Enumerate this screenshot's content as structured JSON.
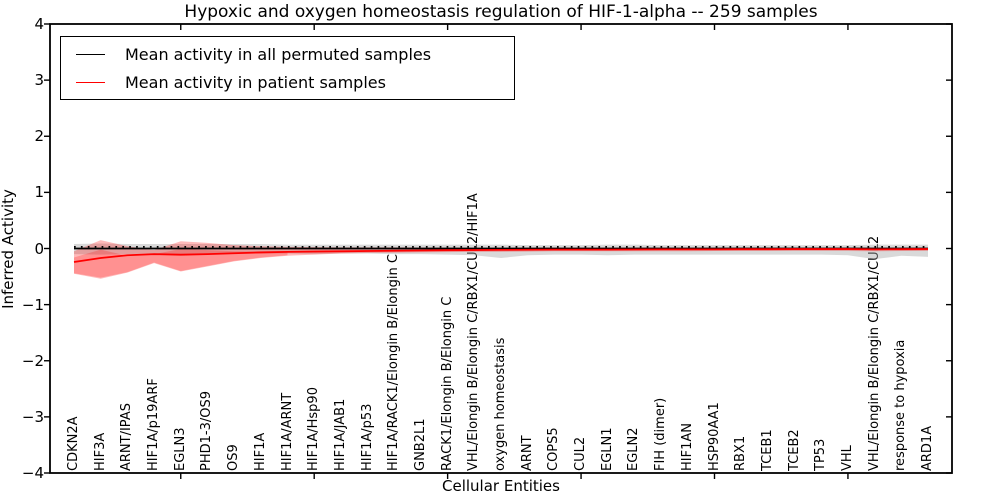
{
  "chart_data": {
    "type": "line",
    "title": "Hypoxic and oxygen homeostasis regulation of HIF-1-alpha -- 259 samples",
    "xlabel": "Cellular Entities",
    "ylabel": "Inferred Activity",
    "ylim": [
      -4,
      4
    ],
    "ytick_values": [
      4,
      3,
      2,
      1,
      0,
      -1,
      -2,
      -3,
      -4
    ],
    "ytick_labels": [
      "4",
      "3",
      "2",
      "1",
      "0",
      "−1",
      "−2",
      "−3",
      "−4"
    ],
    "xtick_marks_at_indices": [
      4,
      9,
      14,
      19,
      24,
      29
    ],
    "grid": false,
    "legend_position": "upper left",
    "categories": [
      "CDKN2A",
      "HIF3A",
      "ARNT/IPAS",
      "HIF1A/p19ARF",
      "EGLN3",
      "PHD1-3/OS9",
      "OS9",
      "HIF1A",
      "HIF1A/ARNT",
      "HIF1A/Hsp90",
      "HIF1A/JAB1",
      "HIF1A/p53",
      "HIF1A/RACK1/Elongin B/Elongin C",
      "GNB2L1",
      "RACK1/Elongin B/Elongin C",
      "VHL/Elongin B/Elongin C/RBX1/CUL2/HIF1A",
      "oxygen homeostasis",
      "ARNT",
      "COPS5",
      "CUL2",
      "EGLN1",
      "EGLN2",
      "FIH (dimer)",
      "HIF1AN",
      "HSP90AA1",
      "RBX1",
      "TCEB1",
      "TCEB2",
      "TP53",
      "VHL",
      "VHL/Elongin B/Elongin C/RBX1/CUL2",
      "response to hypoxia",
      "ARD1A"
    ],
    "series": [
      {
        "name": "Mean activity in all permuted samples",
        "color": "#000000",
        "style": "solid",
        "values": [
          0,
          0,
          0,
          0,
          0,
          0,
          0,
          0,
          0,
          0,
          0,
          0,
          0,
          0,
          0,
          0,
          0,
          0,
          0,
          0,
          0,
          0,
          0,
          0,
          0,
          0,
          0,
          0,
          0,
          0,
          0,
          0,
          0
        ]
      },
      {
        "name": "Mean activity in patient samples",
        "color": "#ff0000",
        "style": "solid",
        "values": [
          -0.24,
          -0.17,
          -0.12,
          -0.1,
          -0.11,
          -0.1,
          -0.085,
          -0.07,
          -0.06,
          -0.055,
          -0.05,
          -0.045,
          -0.04,
          -0.035,
          -0.03,
          -0.028,
          -0.025,
          -0.022,
          -0.02,
          -0.02,
          -0.02,
          -0.018,
          -0.016,
          -0.015,
          -0.015,
          -0.012,
          -0.012,
          -0.01,
          -0.01,
          -0.01,
          -0.015,
          -0.012,
          -0.01
        ]
      }
    ],
    "dotted_zero_line": {
      "color": "#000000",
      "value": 0.03,
      "style": "dotted"
    },
    "bands": [
      {
        "name": "permuted-samples-range",
        "color": "#aaaaaa",
        "opacity": 0.45,
        "start_index": 0,
        "upper": [
          0.08,
          0.09,
          0.08,
          0.08,
          0.08,
          0.08,
          0.08,
          0.08,
          0.07,
          0.07,
          0.07,
          0.07,
          0.07,
          0.07,
          0.07,
          0.07,
          0.07,
          0.06,
          0.06,
          0.06,
          0.07,
          0.07,
          0.06,
          0.06,
          0.06,
          0.06,
          0.06,
          0.06,
          0.06,
          0.06,
          0.07,
          0.07,
          0.07
        ],
        "lower": [
          -0.1,
          -0.11,
          -0.1,
          -0.09,
          -0.1,
          -0.09,
          -0.09,
          -0.09,
          -0.09,
          -0.1,
          -0.09,
          -0.09,
          -0.1,
          -0.1,
          -0.11,
          -0.12,
          -0.17,
          -0.12,
          -0.11,
          -0.11,
          -0.12,
          -0.11,
          -0.11,
          -0.11,
          -0.11,
          -0.11,
          -0.11,
          -0.11,
          -0.11,
          -0.12,
          -0.19,
          -0.13,
          -0.15
        ]
      },
      {
        "name": "patient-samples-range-outer",
        "color": "#ff0000",
        "opacity": 0.27,
        "start_index": 0,
        "upper": [
          -0.05,
          0.15,
          0.04,
          -0.03,
          0.13,
          0.1,
          0.06,
          0.04,
          0.03,
          0.025,
          0.02,
          0.02,
          0.02,
          0.018,
          0.016,
          0.015,
          0.015,
          0.015,
          0.015,
          0.015,
          0.015,
          0.015,
          0.015,
          0.015,
          0.015,
          0.015,
          0.015,
          0.015,
          0.015,
          0.015,
          0.018,
          0.015,
          0.015
        ],
        "lower": [
          -0.45,
          -0.54,
          -0.43,
          -0.26,
          -0.41,
          -0.32,
          -0.23,
          -0.17,
          -0.13,
          -0.11,
          -0.09,
          -0.08,
          -0.075,
          -0.07,
          -0.065,
          -0.06,
          -0.06,
          -0.055,
          -0.05,
          -0.05,
          -0.05,
          -0.05,
          -0.05,
          -0.05,
          -0.045,
          -0.045,
          -0.045,
          -0.045,
          -0.045,
          -0.045,
          -0.05,
          -0.045,
          -0.045
        ]
      },
      {
        "name": "patient-samples-range-inner",
        "color": "#ff0000",
        "opacity": 0.22,
        "start_index": 0,
        "upper": [
          -0.16,
          -0.02,
          -0.13,
          -0.1,
          -0.01,
          -0.03,
          -0.05,
          -0.05,
          -0.05
        ],
        "lower": [
          -0.44,
          -0.52,
          -0.42,
          -0.25,
          -0.4,
          -0.31,
          -0.22,
          -0.16,
          -0.12
        ]
      }
    ],
    "legend": {
      "entries": [
        {
          "label": "Mean activity in all permuted samples",
          "color": "#000000"
        },
        {
          "label": "Mean activity in patient samples",
          "color": "#ff0000"
        }
      ]
    }
  }
}
